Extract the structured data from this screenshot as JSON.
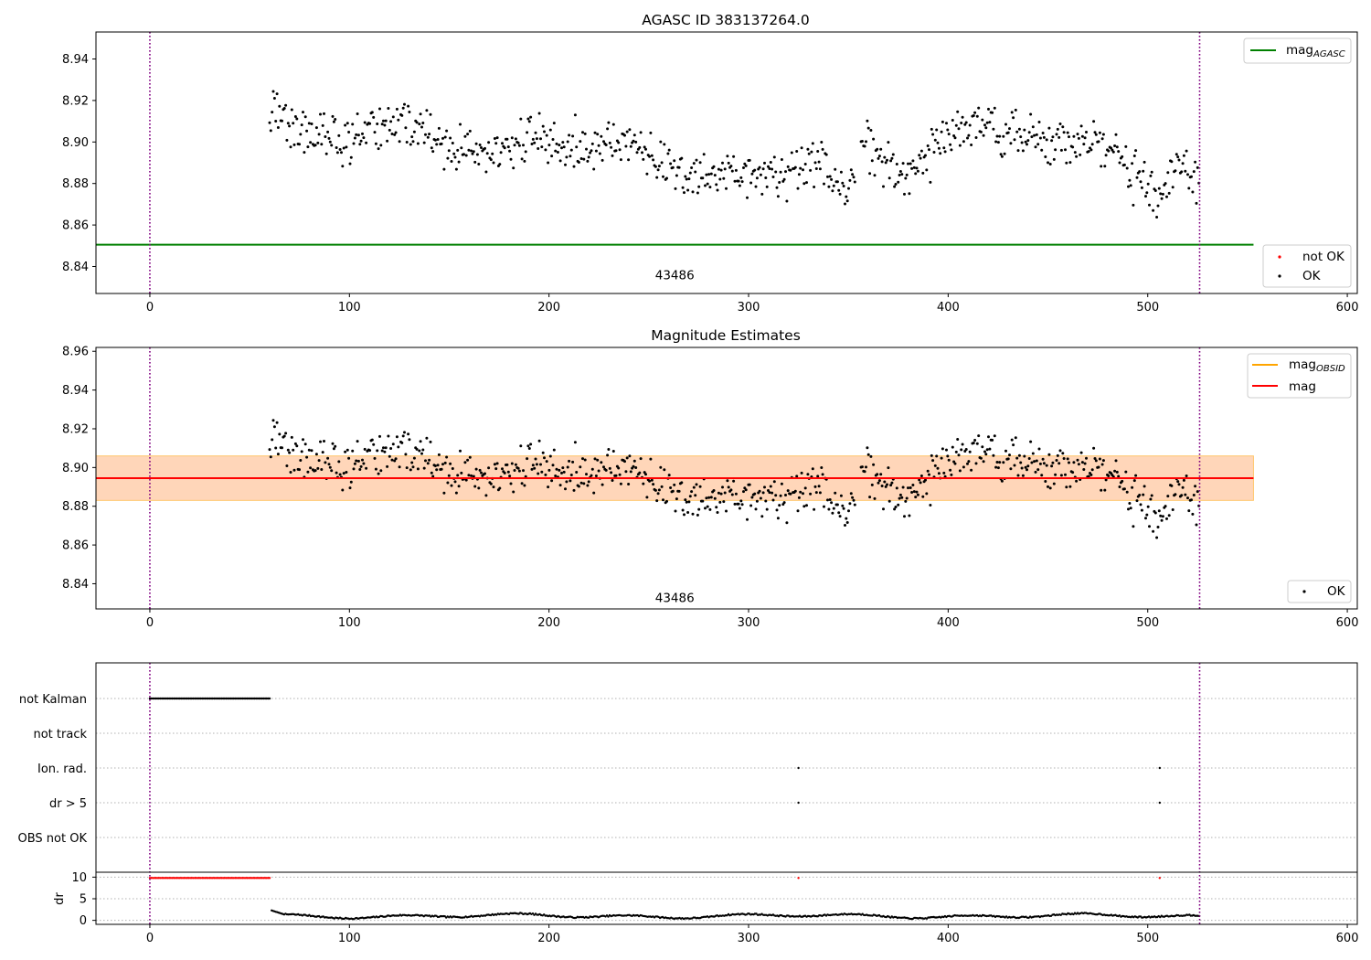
{
  "figure": {
    "panels": [
      "agasc",
      "estimates",
      "flags"
    ]
  },
  "chart_data": [
    {
      "id": "agasc",
      "type": "scatter",
      "title": "AGASC ID 383137264.0",
      "xlabel": "",
      "ylabel": "",
      "xlim": [
        -27,
        605
      ],
      "ylim": [
        8.827,
        8.953
      ],
      "xticks": [
        "0",
        "100",
        "200",
        "300",
        "400",
        "500",
        "600"
      ],
      "xtick_values": [
        0,
        100,
        200,
        300,
        400,
        500,
        600
      ],
      "yticks": [
        "8.84",
        "8.86",
        "8.88",
        "8.90",
        "8.92",
        "8.94"
      ],
      "ytick_values": [
        8.84,
        8.86,
        8.88,
        8.9,
        8.92,
        8.94
      ],
      "vlines": [
        0,
        526
      ],
      "hline": {
        "name": "mag_AGASC",
        "y": 8.8505,
        "x_start": -27,
        "x_end": 553,
        "color": "#008000"
      },
      "annotation": {
        "text": "43486",
        "x": 263,
        "y": 8.836
      },
      "series_model": {
        "name": "OK",
        "x_start": 60,
        "x_end": 526,
        "mean": 8.895,
        "color": "#000000"
      },
      "legend_top": [
        {
          "label": "mag",
          "subscript": "AGASC",
          "color": "#008000",
          "kind": "line"
        }
      ],
      "legend_bottom": [
        {
          "label": "not OK",
          "color": "#ff0000",
          "kind": "dot"
        },
        {
          "label": "OK",
          "color": "#000000",
          "kind": "dot"
        }
      ]
    },
    {
      "id": "estimates",
      "type": "scatter",
      "title": "Magnitude Estimates",
      "xlabel": "",
      "ylabel": "",
      "xlim": [
        -27,
        605
      ],
      "ylim": [
        8.827,
        8.962
      ],
      "xticks": [
        "0",
        "100",
        "200",
        "300",
        "400",
        "500",
        "600"
      ],
      "xtick_values": [
        0,
        100,
        200,
        300,
        400,
        500,
        600
      ],
      "yticks": [
        "8.84",
        "8.86",
        "8.88",
        "8.90",
        "8.92",
        "8.94",
        "8.96"
      ],
      "ytick_values": [
        8.84,
        8.86,
        8.88,
        8.9,
        8.92,
        8.94,
        8.96
      ],
      "vlines": [
        0,
        526
      ],
      "mag": 8.8945,
      "band_outer": [
        8.883,
        8.906
      ],
      "band_inner": [
        8.883,
        8.906
      ],
      "band_x": [
        -27,
        553
      ],
      "annotation": {
        "text": "43486",
        "x": 263,
        "y": 8.833
      },
      "legend_top": [
        {
          "label": "mag",
          "subscript": "OBSID",
          "color": "#ffa500",
          "kind": "line"
        },
        {
          "label": "mag",
          "subscript": "",
          "color": "#ff0000",
          "kind": "line"
        }
      ],
      "legend_bottom": [
        {
          "label": "OK",
          "color": "#000000",
          "kind": "dot"
        }
      ]
    },
    {
      "id": "flags",
      "type": "scatter",
      "title": "",
      "xlim": [
        -27,
        605
      ],
      "xticks": [
        "0",
        "100",
        "200",
        "300",
        "400",
        "500",
        "600"
      ],
      "xtick_values": [
        0,
        100,
        200,
        300,
        400,
        500,
        600
      ],
      "vlines": [
        0,
        526
      ],
      "flag_rows": [
        "not Kalman",
        "not track",
        "Ion. rad.",
        "dr > 5",
        "OBS not OK"
      ],
      "flag_points": [
        {
          "row": "not Kalman",
          "x_start": 0,
          "x_end": 60
        },
        {
          "row": "Ion. rad.",
          "x_values": [
            325,
            506
          ]
        },
        {
          "row": "dr > 5",
          "x_values": [
            325,
            506
          ]
        }
      ],
      "dr_ylabel": "dr",
      "dr_yticks": [
        "0",
        "5",
        "10"
      ],
      "dr_ytick_values": [
        0,
        5,
        10
      ],
      "dr_ylim": [
        -0.5,
        10.5
      ],
      "dr_capped_x": [
        [
          0,
          60
        ],
        [
          325,
          325
        ],
        [
          506,
          506
        ]
      ],
      "dr_series": {
        "x_start": 61,
        "x_end": 526,
        "baseline": 1.0
      }
    }
  ]
}
